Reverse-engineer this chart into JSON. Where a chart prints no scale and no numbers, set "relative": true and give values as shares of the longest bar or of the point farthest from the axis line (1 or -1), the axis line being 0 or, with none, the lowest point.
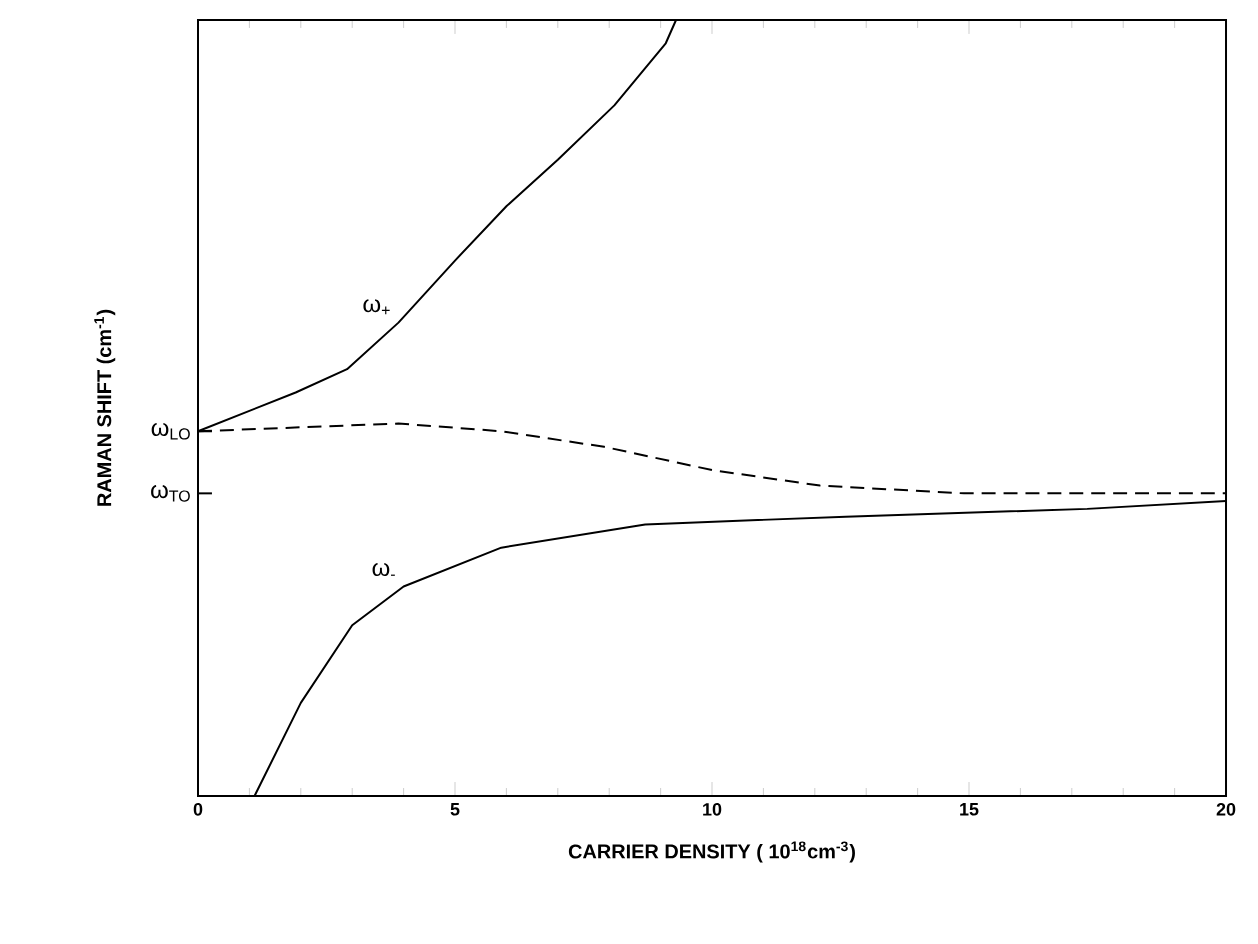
{
  "chart_data": {
    "type": "line",
    "relative": true,
    "xlabel": "CARRIER DENSITY ( 10$^{18}$cm$^{-3}$)",
    "ylabel": "RAMAN SHIFT (cm$^{-1}$)",
    "xlim": [
      0,
      20
    ],
    "xticks": [
      0,
      5,
      10,
      15,
      20
    ],
    "grid": false,
    "legend": false,
    "marker": "none",
    "series": [
      {
        "color": "#000000",
        "line_style": "solid",
        "x": [
          0,
          1.9,
          2.9,
          3.9,
          5,
          6,
          7,
          8.1,
          9.1,
          9.3
        ],
        "values": [
          0.47,
          0.52,
          0.55,
          0.61,
          0.69,
          0.76,
          0.82,
          0.89,
          0.97,
          1
        ]
      },
      {
        "color": "#000000",
        "line_style": "dashed",
        "x": [
          0,
          3.9,
          5.9,
          7.9,
          10,
          12.1,
          14.9,
          20
        ],
        "values": [
          0.47,
          0.48,
          0.47,
          0.45,
          0.42,
          0.4,
          0.39,
          0.39
        ]
      },
      {
        "color": "#000000",
        "line_style": "solid",
        "x": [
          1.1,
          2,
          3,
          4,
          5.9,
          8.7,
          12.6,
          17.3,
          20
        ],
        "values": [
          0,
          0.12,
          0.22,
          0.27,
          0.32,
          0.35,
          0.36,
          0.37,
          0.38
        ]
      }
    ],
    "annotations": [
      "ω$_{+}$",
      "ω$_{-}$",
      "ω$_{LO}$",
      "ω$_{TO}$"
    ]
  }
}
